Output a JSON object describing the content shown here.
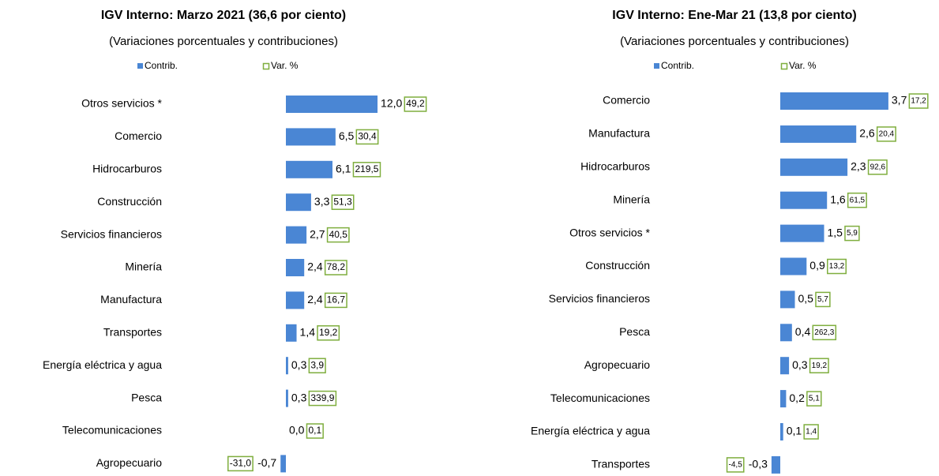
{
  "chart_data": [
    {
      "type": "bar",
      "title": "IGV Interno: Marzo 2021 (36,6 por ciento)",
      "subtitle": "(Variaciones porcentuales y contribuciones)",
      "categories": [
        "Otros servicios *",
        "Comercio",
        "Hidrocarburos",
        "Construcción",
        "Servicios financieros",
        "Minería",
        "Manufactura",
        "Transportes",
        "Energía eléctrica y agua",
        "Pesca",
        "Telecomunicaciones",
        "Agropecuario"
      ],
      "series": [
        {
          "name": "Contrib.",
          "color": "#4a86d4",
          "values": [
            12.0,
            6.5,
            6.1,
            3.3,
            2.7,
            2.4,
            2.4,
            1.4,
            0.3,
            0.3,
            0.0,
            -0.7
          ],
          "value_labels": [
            "12,0",
            "6,5",
            "6,1",
            "3,3",
            "2,7",
            "2,4",
            "2,4",
            "1,4",
            "0,3",
            "0,3",
            "0,0",
            "-0,7"
          ]
        },
        {
          "name": "Var. %",
          "color": "#7fae3e",
          "values": [
            49.2,
            30.4,
            219.5,
            51.3,
            40.5,
            78.2,
            16.7,
            19.2,
            3.9,
            339.9,
            0.1,
            -31.0
          ],
          "value_labels": [
            "49,2",
            "30,4",
            "219,5",
            "51,3",
            "40,5",
            "78,2",
            "16,7",
            "19,2",
            "3,9",
            "339,9",
            "0,1",
            "-31,0"
          ]
        }
      ],
      "xlim": [
        -15.5,
        14
      ]
    },
    {
      "type": "bar",
      "title": "IGV Interno: Ene-Mar 21 (13,8 por ciento)",
      "subtitle": "(Variaciones porcentuales y contribuciones)",
      "categories": [
        "Comercio",
        "Manufactura",
        "Hidrocarburos",
        "Minería",
        "Otros servicios *",
        "Construcción",
        "Servicios financieros",
        "Pesca",
        "Agropecuario",
        "Telecomunicaciones",
        "Energía eléctrica y agua",
        "Transportes"
      ],
      "series": [
        {
          "name": "Contrib.",
          "color": "#4a86d4",
          "values": [
            3.7,
            2.6,
            2.3,
            1.6,
            1.5,
            0.9,
            0.5,
            0.4,
            0.3,
            0.2,
            0.1,
            -0.3
          ],
          "value_labels": [
            "3,7",
            "2,6",
            "2,3",
            "1,6",
            "1,5",
            "0,9",
            "0,5",
            "0,4",
            "0,3",
            "0,2",
            "0,1",
            "-0,3"
          ]
        },
        {
          "name": "Var. %",
          "color": "#7fae3e",
          "values": [
            17.2,
            20.4,
            92.6,
            61.5,
            5.9,
            13.2,
            5.7,
            262.3,
            19.2,
            5.1,
            1.4,
            -4.5
          ],
          "value_labels": [
            "17,2",
            "20,4",
            "92,6",
            "61,5",
            "5,9",
            "13,2",
            "5,7",
            "262,3",
            "19,2",
            "5,1",
            "1,4",
            "-4,5"
          ]
        }
      ],
      "xlim": [
        -4.5,
        5.46
      ]
    }
  ]
}
